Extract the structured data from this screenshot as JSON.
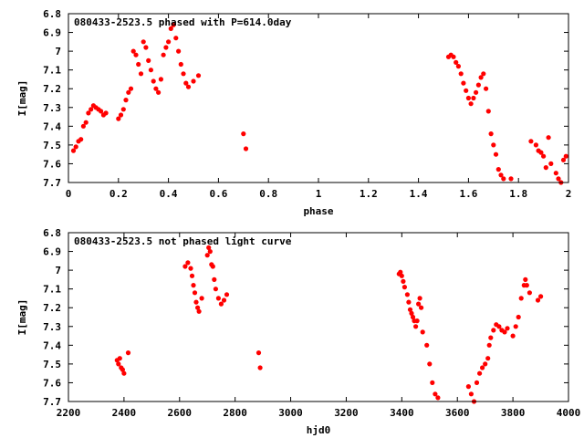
{
  "chart_data": [
    {
      "type": "scatter",
      "title": "080433-2523.5 phased with P=614.0day",
      "xlabel": "phase",
      "ylabel": "I[mag]",
      "xlim": [
        0,
        2
      ],
      "ylim": [
        6.8,
        7.7
      ],
      "y_inverted": true,
      "x_ticks": [
        "0",
        "0.2",
        "0.4",
        "0.6",
        "0.8",
        "1",
        "1.2",
        "1.4",
        "1.6",
        "1.8",
        "2"
      ],
      "x_tick_values": [
        0,
        0.2,
        0.4,
        0.6,
        0.8,
        1.0,
        1.2,
        1.4,
        1.6,
        1.8,
        2.0
      ],
      "y_ticks": [
        "6.8",
        "6.9",
        "7",
        "7.1",
        "7.2",
        "7.3",
        "7.4",
        "7.5",
        "7.6",
        "7.7"
      ],
      "y_tick_values": [
        6.8,
        6.9,
        7.0,
        7.1,
        7.2,
        7.3,
        7.4,
        7.5,
        7.6,
        7.7
      ],
      "grid": false,
      "marker_color": "#ff0000",
      "points": [
        [
          0.02,
          7.53
        ],
        [
          0.03,
          7.51
        ],
        [
          0.04,
          7.48
        ],
        [
          0.05,
          7.47
        ],
        [
          0.06,
          7.4
        ],
        [
          0.07,
          7.38
        ],
        [
          0.08,
          7.33
        ],
        [
          0.09,
          7.31
        ],
        [
          0.1,
          7.29
        ],
        [
          0.11,
          7.3
        ],
        [
          0.12,
          7.31
        ],
        [
          0.13,
          7.32
        ],
        [
          0.14,
          7.34
        ],
        [
          0.15,
          7.33
        ],
        [
          0.2,
          7.36
        ],
        [
          0.21,
          7.34
        ],
        [
          0.22,
          7.31
        ],
        [
          0.23,
          7.26
        ],
        [
          0.24,
          7.22
        ],
        [
          0.25,
          7.2
        ],
        [
          0.26,
          7.0
        ],
        [
          0.27,
          7.02
        ],
        [
          0.28,
          7.07
        ],
        [
          0.29,
          7.12
        ],
        [
          0.3,
          6.95
        ],
        [
          0.31,
          6.98
        ],
        [
          0.32,
          7.05
        ],
        [
          0.33,
          7.1
        ],
        [
          0.34,
          7.16
        ],
        [
          0.35,
          7.2
        ],
        [
          0.36,
          7.22
        ],
        [
          0.37,
          7.15
        ],
        [
          0.38,
          7.02
        ],
        [
          0.39,
          6.98
        ],
        [
          0.4,
          6.95
        ],
        [
          0.41,
          6.88
        ],
        [
          0.42,
          6.86
        ],
        [
          0.43,
          6.93
        ],
        [
          0.44,
          7.0
        ],
        [
          0.45,
          7.07
        ],
        [
          0.46,
          7.12
        ],
        [
          0.47,
          7.17
        ],
        [
          0.48,
          7.19
        ],
        [
          0.5,
          7.16
        ],
        [
          0.52,
          7.13
        ],
        [
          0.7,
          7.44
        ],
        [
          0.71,
          7.52
        ],
        [
          1.52,
          7.03
        ],
        [
          1.53,
          7.02
        ],
        [
          1.54,
          7.03
        ],
        [
          1.55,
          7.06
        ],
        [
          1.56,
          7.08
        ],
        [
          1.57,
          7.12
        ],
        [
          1.58,
          7.17
        ],
        [
          1.59,
          7.21
        ],
        [
          1.6,
          7.25
        ],
        [
          1.61,
          7.28
        ],
        [
          1.62,
          7.25
        ],
        [
          1.63,
          7.22
        ],
        [
          1.64,
          7.18
        ],
        [
          1.65,
          7.14
        ],
        [
          1.66,
          7.12
        ],
        [
          1.67,
          7.2
        ],
        [
          1.68,
          7.32
        ],
        [
          1.69,
          7.44
        ],
        [
          1.7,
          7.5
        ],
        [
          1.71,
          7.55
        ],
        [
          1.72,
          7.63
        ],
        [
          1.73,
          7.66
        ],
        [
          1.74,
          7.68
        ],
        [
          1.77,
          7.68
        ],
        [
          1.85,
          7.48
        ],
        [
          1.87,
          7.5
        ],
        [
          1.88,
          7.53
        ],
        [
          1.89,
          7.54
        ],
        [
          1.9,
          7.56
        ],
        [
          1.91,
          7.62
        ],
        [
          1.92,
          7.46
        ],
        [
          1.93,
          7.6
        ],
        [
          1.95,
          7.65
        ],
        [
          1.96,
          7.68
        ],
        [
          1.97,
          7.7
        ],
        [
          1.98,
          7.58
        ],
        [
          1.99,
          7.56
        ]
      ]
    },
    {
      "type": "scatter",
      "title": "080433-2523.5 not phased light curve",
      "xlabel": "hjd0",
      "ylabel": "I[mag]",
      "xlim": [
        2200,
        4000
      ],
      "ylim": [
        6.8,
        7.7
      ],
      "y_inverted": true,
      "x_ticks": [
        "2200",
        "2400",
        "2600",
        "2800",
        "3000",
        "3200",
        "3400",
        "3600",
        "3800",
        "4000"
      ],
      "x_tick_values": [
        2200,
        2400,
        2600,
        2800,
        3000,
        3200,
        3400,
        3600,
        3800,
        4000
      ],
      "y_ticks": [
        "6.8",
        "6.9",
        "7",
        "7.1",
        "7.2",
        "7.3",
        "7.4",
        "7.5",
        "7.6",
        "7.7"
      ],
      "y_tick_values": [
        6.8,
        6.9,
        7.0,
        7.1,
        7.2,
        7.3,
        7.4,
        7.5,
        7.6,
        7.7
      ],
      "grid": false,
      "marker_color": "#ff0000",
      "points": [
        [
          2375,
          7.48
        ],
        [
          2380,
          7.5
        ],
        [
          2385,
          7.47
        ],
        [
          2390,
          7.52
        ],
        [
          2395,
          7.53
        ],
        [
          2400,
          7.55
        ],
        [
          2415,
          7.44
        ],
        [
          2620,
          6.98
        ],
        [
          2630,
          6.96
        ],
        [
          2640,
          6.99
        ],
        [
          2645,
          7.03
        ],
        [
          2650,
          7.08
        ],
        [
          2655,
          7.12
        ],
        [
          2660,
          7.17
        ],
        [
          2665,
          7.2
        ],
        [
          2670,
          7.22
        ],
        [
          2680,
          7.15
        ],
        [
          2700,
          6.92
        ],
        [
          2705,
          6.88
        ],
        [
          2710,
          6.9
        ],
        [
          2715,
          6.97
        ],
        [
          2720,
          6.98
        ],
        [
          2725,
          7.05
        ],
        [
          2730,
          7.1
        ],
        [
          2740,
          7.15
        ],
        [
          2750,
          7.18
        ],
        [
          2760,
          7.16
        ],
        [
          2770,
          7.13
        ],
        [
          2885,
          7.44
        ],
        [
          2890,
          7.52
        ],
        [
          3390,
          7.02
        ],
        [
          3395,
          7.01
        ],
        [
          3400,
          7.03
        ],
        [
          3405,
          7.06
        ],
        [
          3410,
          7.09
        ],
        [
          3420,
          7.13
        ],
        [
          3425,
          7.17
        ],
        [
          3430,
          7.21
        ],
        [
          3435,
          7.23
        ],
        [
          3440,
          7.25
        ],
        [
          3445,
          7.27
        ],
        [
          3450,
          7.3
        ],
        [
          3455,
          7.27
        ],
        [
          3460,
          7.18
        ],
        [
          3465,
          7.15
        ],
        [
          3470,
          7.2
        ],
        [
          3475,
          7.33
        ],
        [
          3490,
          7.4
        ],
        [
          3500,
          7.5
        ],
        [
          3510,
          7.6
        ],
        [
          3520,
          7.66
        ],
        [
          3530,
          7.68
        ],
        [
          3640,
          7.62
        ],
        [
          3650,
          7.66
        ],
        [
          3660,
          7.7
        ],
        [
          3670,
          7.6
        ],
        [
          3680,
          7.55
        ],
        [
          3690,
          7.52
        ],
        [
          3700,
          7.5
        ],
        [
          3710,
          7.47
        ],
        [
          3715,
          7.4
        ],
        [
          3720,
          7.36
        ],
        [
          3730,
          7.32
        ],
        [
          3740,
          7.29
        ],
        [
          3750,
          7.3
        ],
        [
          3760,
          7.32
        ],
        [
          3770,
          7.33
        ],
        [
          3780,
          7.31
        ],
        [
          3800,
          7.35
        ],
        [
          3810,
          7.3
        ],
        [
          3820,
          7.25
        ],
        [
          3830,
          7.15
        ],
        [
          3840,
          7.08
        ],
        [
          3845,
          7.05
        ],
        [
          3850,
          7.08
        ],
        [
          3860,
          7.12
        ],
        [
          3890,
          7.16
        ],
        [
          3900,
          7.14
        ]
      ]
    }
  ]
}
